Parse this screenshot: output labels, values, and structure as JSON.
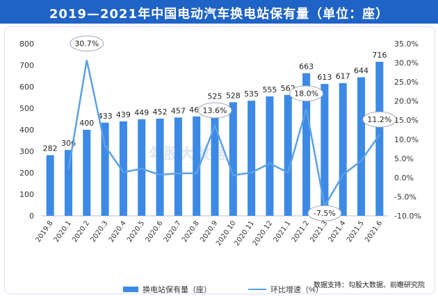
{
  "header": {
    "title": "2019—2021年中国电动汽车换电站保有量（单位：座）"
  },
  "source_text": "数据支持：勾股大数据、前瞻研究院",
  "watermark": "勾股大数据",
  "colors": {
    "header_bg": "#1f63c6",
    "bar": "#3d8ae6",
    "line": "#5aa0ea"
  },
  "chart_data": {
    "type": "bar",
    "categories": [
      "2019.8",
      "2020.1",
      "2020.2",
      "2020.3",
      "2020.4",
      "2020.5",
      "2020.6",
      "2020.7",
      "2020.8",
      "2020.9",
      "2020.10",
      "2020.11",
      "2020.12",
      "2021.1",
      "2021.2",
      "2021.3",
      "2021.4",
      "2021.5",
      "2021.6"
    ],
    "series": [
      {
        "name": "换电站保有量（座）",
        "type": "bar",
        "axis": "left",
        "values": [
          282,
          306,
          400,
          433,
          439,
          449,
          452,
          457,
          462,
          525,
          528,
          535,
          555,
          562,
          663,
          613,
          617,
          644,
          716
        ]
      },
      {
        "name": "环比增速（%）",
        "type": "line",
        "axis": "right",
        "values": [
          null,
          2.0,
          30.7,
          8.3,
          1.4,
          2.3,
          0.7,
          1.1,
          1.1,
          13.6,
          0.6,
          1.3,
          3.7,
          1.3,
          18.0,
          -7.5,
          0.7,
          4.4,
          11.2
        ]
      }
    ],
    "bar_labels": [
      "282",
      "306",
      "400",
      "433",
      "439",
      "449",
      "452",
      "457",
      "462",
      "525",
      "528",
      "535",
      "555",
      "562",
      "663",
      "613",
      "617",
      "644",
      "716"
    ],
    "callouts": [
      {
        "index": 2,
        "label": "30.7%"
      },
      {
        "index": 9,
        "label": "13.6%"
      },
      {
        "index": 14,
        "label": "18.0%"
      },
      {
        "index": 15,
        "label": "-7.5%"
      },
      {
        "index": 18,
        "label": "11.2%"
      }
    ],
    "y_left": {
      "min": 0,
      "max": 800,
      "ticks": [
        "0",
        "100",
        "200",
        "300",
        "400",
        "500",
        "600",
        "700",
        "800"
      ]
    },
    "y_right": {
      "min": -10,
      "max": 35,
      "ticks": [
        "-10.0%",
        "-5.0%",
        "0.0%",
        "5.0%",
        "10.0%",
        "15.0%",
        "20.0%",
        "25.0%",
        "30.0%",
        "35.0%"
      ]
    },
    "grid": false,
    "legend_position": "bottom"
  }
}
